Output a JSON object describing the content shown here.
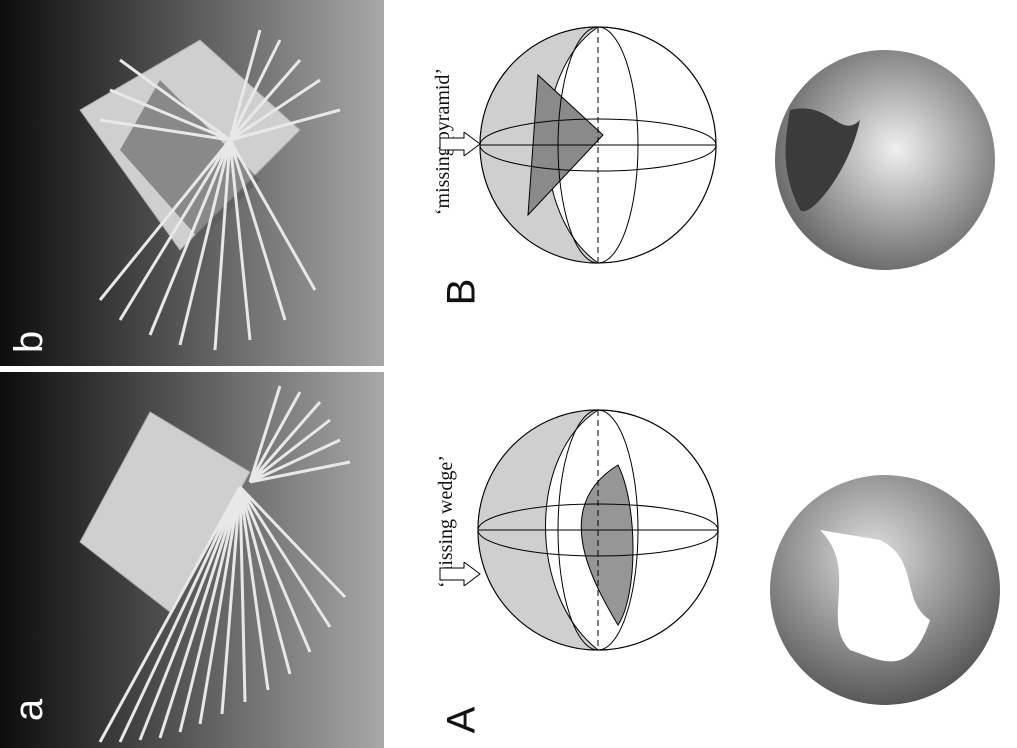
{
  "panels": {
    "a": {
      "letter": "a"
    },
    "b": {
      "letter": "b"
    }
  },
  "figures": {
    "A": {
      "letter": "A",
      "label": "‘missing wedge’"
    },
    "B": {
      "letter": "B",
      "label": "‘missing pyramid’"
    }
  },
  "colors": {
    "photo_dark": "#1a1a1a",
    "photo_light": "#9a9a9a",
    "wedge_fill": "#c9c9c9",
    "wedge_dark": "#8f8f8f",
    "sphere_surface": "#8a8a8a"
  }
}
